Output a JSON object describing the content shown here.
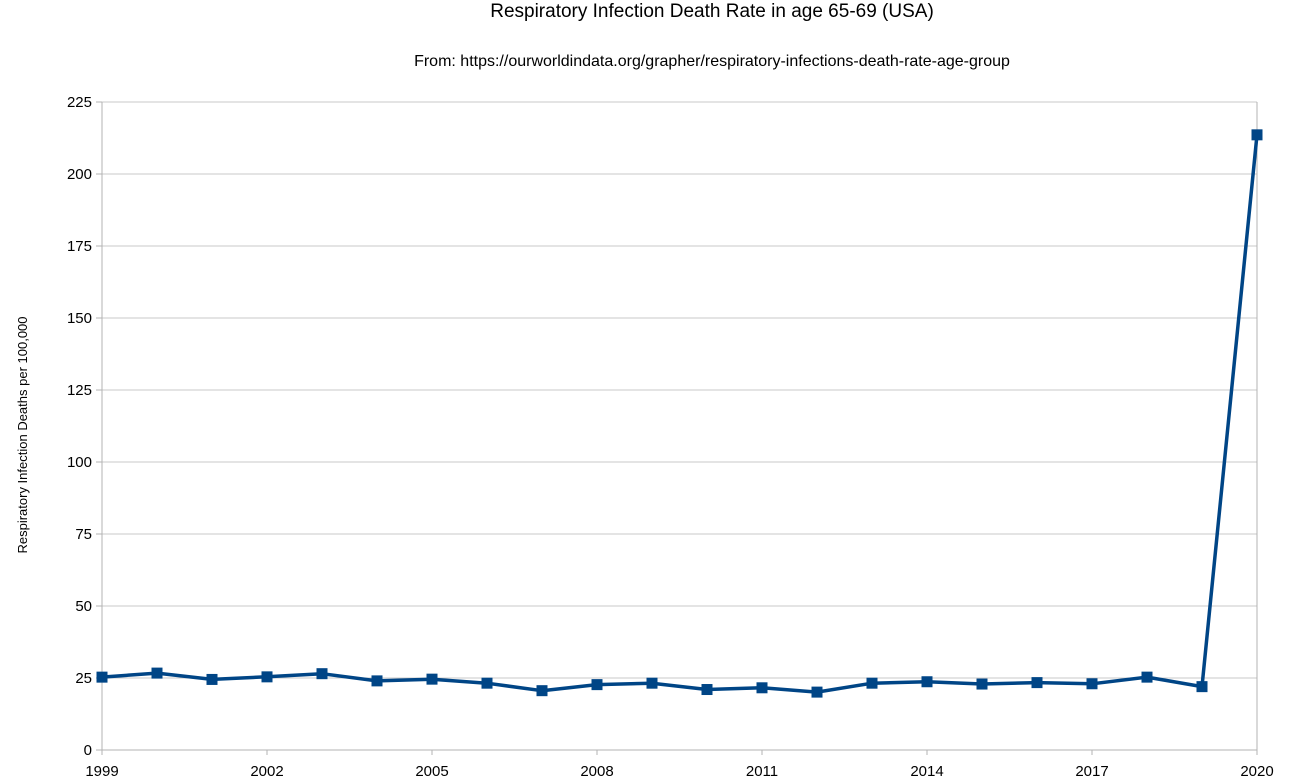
{
  "chart_data": {
    "type": "line",
    "title": "Respiratory Infection Death Rate in age 65-69 (USA)",
    "subtitle": "From: https://ourworldindata.org/grapher/respiratory-infections-death-rate-age-group",
    "xlabel": "",
    "ylabel": "Respiratory Infection Deaths per 100,000",
    "xlim": [
      1999,
      2020
    ],
    "ylim": [
      0,
      225
    ],
    "y_ticks": [
      0,
      25,
      50,
      75,
      100,
      125,
      150,
      175,
      200,
      225
    ],
    "x_ticks": [
      1999,
      2002,
      2005,
      2008,
      2011,
      2014,
      2017,
      2020
    ],
    "grid": "horizontal",
    "legend": "none",
    "series": [
      {
        "color": "#004586",
        "marker": "square",
        "x": [
          1999,
          2000,
          2001,
          2002,
          2003,
          2004,
          2005,
          2006,
          2007,
          2008,
          2009,
          2010,
          2011,
          2012,
          2013,
          2014,
          2015,
          2016,
          2017,
          2018,
          2019,
          2020
        ],
        "values": [
          25.3,
          26.7,
          24.5,
          25.4,
          26.5,
          24.0,
          24.6,
          23.2,
          20.6,
          22.7,
          23.2,
          21.0,
          21.6,
          20.1,
          23.2,
          23.7,
          22.9,
          23.4,
          23.0,
          25.3,
          22.0,
          213.6
        ]
      }
    ]
  }
}
